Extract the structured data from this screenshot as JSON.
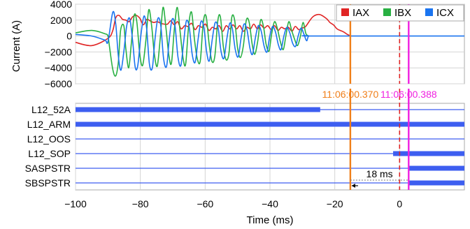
{
  "chart_data": [
    {
      "type": "line",
      "ylabel": "Current (A)",
      "xlabel": "",
      "xlim": [
        -100,
        20
      ],
      "ylim": [
        -6000,
        4000
      ],
      "yticks": [
        4000,
        2000,
        0,
        -2000,
        -4000,
        -6000
      ],
      "yticks_labels": [
        "4000",
        "2000",
        "0",
        "−2000",
        "−4000",
        "−6000"
      ],
      "grid": true,
      "legend_position": "top-right",
      "series": [
        {
          "name": "IAX",
          "color": "#e02424",
          "x": [
            -100,
            -95,
            -90,
            -88.5,
            -87.6,
            -86.6,
            -85.5,
            -84.5,
            -83.5,
            -82.4,
            -81.3,
            -80.1,
            -79.1,
            -78,
            -77,
            -75.9,
            -74.8,
            -73.7,
            -72.7,
            -71.6,
            -70.6,
            -69.5,
            -68.5,
            -67.4,
            -66.3,
            -65.3,
            -64.2,
            -63.1,
            -62.1,
            -61,
            -59.9,
            -58.8,
            -57.8,
            -56.7,
            -55.7,
            -54.6,
            -53.5,
            -52.4,
            -51.4,
            -50.3,
            -49.3,
            -48.2,
            -47.1,
            -46,
            -45,
            -43.9,
            -42.9,
            -41.8,
            -40.7,
            -39.6,
            -38.6,
            -37.5,
            -36.5,
            -35.4,
            -34.3,
            -33.2,
            -32.2,
            -31.1,
            -30.1,
            -29,
            -26.8,
            -24.7,
            -22.6,
            -21.5,
            -20.4,
            -19.3,
            -18.3,
            -17.2,
            -16.1,
            -15
          ],
          "values": [
            -800,
            -1200,
            -300,
            700,
            2300,
            2600,
            2100,
            2000,
            1800,
            2400,
            2600,
            2200,
            1400,
            2100,
            1900,
            1700,
            1800,
            1600,
            1500,
            1500,
            1900,
            1400,
            1800,
            900,
            1300,
            1200,
            1600,
            800,
            1300,
            1100,
            1500,
            700,
            1100,
            900,
            1300,
            600,
            1300,
            900,
            1400,
            900,
            1300,
            600,
            1100,
            900,
            1500,
            900,
            1400,
            1000,
            1300,
            800,
            1300,
            700,
            1100,
            900,
            1100,
            600,
            1200,
            800,
            1000,
            1200,
            2400,
            2700,
            2200,
            1700,
            1400,
            900,
            700,
            500,
            200,
            0
          ]
        },
        {
          "name": "IBX",
          "color": "#28b042",
          "x": [
            -100,
            -95,
            -91,
            -90,
            -89.6,
            -88.5,
            -87.6,
            -86.8,
            -86.1,
            -85.1,
            -84.5,
            -83.6,
            -82.8,
            -81.9,
            -81.1,
            -80.2,
            -79.3,
            -78.3,
            -77.4,
            -76.5,
            -75.7,
            -74.8,
            -73.9,
            -73,
            -72.1,
            -71.2,
            -70.4,
            -69.5,
            -68.6,
            -67.7,
            -66.8,
            -66,
            -65.1,
            -64.2,
            -63.3,
            -62.4,
            -61.5,
            -60.6,
            -59.7,
            -58.8,
            -57.9,
            -57,
            -56.1,
            -55.3,
            -54.4,
            -53.5,
            -52.6,
            -51.8,
            -50.9,
            -50,
            -49.1,
            -48.2,
            -47.3,
            -46.4,
            -45.5,
            -44.7,
            -43.8,
            -42.9,
            -42,
            -41.2,
            -40.3,
            -39.5,
            -38.6,
            -37.7,
            -36.8,
            -35.9,
            -35.1,
            -34.2,
            -33.3,
            -32.4,
            -31.5,
            -30.6,
            -29.8,
            -28.9,
            -28
          ],
          "values": [
            400,
            700,
            300,
            0,
            -1100,
            -4200,
            -5000,
            -3300,
            700,
            1300,
            -1500,
            -4000,
            -1000,
            2600,
            1800,
            -2200,
            -3700,
            -600,
            3300,
            1200,
            -2200,
            -3800,
            -500,
            3600,
            1000,
            -2400,
            -3400,
            900,
            3600,
            400,
            -2800,
            -3500,
            1300,
            3000,
            -400,
            -2900,
            -3100,
            1700,
            2500,
            -900,
            -3200,
            -2500,
            1900,
            2400,
            -1300,
            -3000,
            -2000,
            2300,
            2000,
            -1500,
            -2700,
            -1200,
            2000,
            1700,
            -1000,
            -2300,
            -700,
            2000,
            1200,
            -1000,
            -1900,
            200,
            1800,
            900,
            -700,
            -1700,
            0,
            1800,
            700,
            -400,
            -1200,
            0,
            1700,
            300,
            0
          ]
        },
        {
          "name": "ICX",
          "color": "#1a74f0",
          "x": [
            -100,
            -95,
            -91,
            -90,
            -88.5,
            -87.6,
            -86.8,
            -86,
            -85.1,
            -84.2,
            -83.3,
            -82.4,
            -81.6,
            -80.8,
            -79.8,
            -78.9,
            -78.1,
            -77.2,
            -76.3,
            -75.5,
            -74.6,
            -73.7,
            -72.8,
            -71.9,
            -71.1,
            -70.2,
            -69.3,
            -68.4,
            -67.5,
            -66.6,
            -65.8,
            -64.9,
            -64,
            -63.1,
            -62.2,
            -61.3,
            -60.4,
            -59.5,
            -58.7,
            -57.8,
            -56.9,
            -56,
            -55.1,
            -54.2,
            -53.3,
            -52.4,
            -51.6,
            -50.7,
            -49.8,
            -48.9,
            -48,
            -47.1,
            -46.2,
            -45.4,
            -44.5,
            -43.6,
            -42.7,
            -41.8,
            -40.9,
            -40.1,
            -39.2,
            -38.3,
            -37.4,
            -36.6,
            -35.7,
            -34.8,
            -33.9,
            -33,
            -32.1,
            -31.3,
            -30.4,
            -29.5,
            -28.7,
            -28,
            -26,
            20
          ],
          "values": [
            200,
            0,
            -500,
            -700,
            3000,
            1500,
            -2500,
            -4300,
            -2000,
            1300,
            2200,
            -500,
            -3900,
            -3700,
            200,
            2500,
            1100,
            -3500,
            -4000,
            -500,
            2200,
            1300,
            -2900,
            -3800,
            -500,
            2100,
            1300,
            -2600,
            -3700,
            -600,
            1900,
            1100,
            -2300,
            -3300,
            -500,
            1800,
            1100,
            -2100,
            -3100,
            -400,
            1700,
            1000,
            -1900,
            -2800,
            -300,
            1600,
            900,
            -1700,
            -2600,
            -200,
            1500,
            800,
            -1500,
            -2300,
            -200,
            1300,
            600,
            -1300,
            -2000,
            -100,
            1200,
            500,
            -1100,
            -1700,
            0,
            1100,
            400,
            -900,
            -1300,
            0,
            1000,
            200,
            -600,
            0,
            0,
            0
          ]
        }
      ]
    },
    {
      "type": "digital-timing",
      "xlabel": "Time (ms)",
      "xlim": [
        -100,
        20
      ],
      "xticks": [
        -100,
        -80,
        -60,
        -40,
        -20,
        0
      ],
      "xticks_labels": [
        "−100",
        "−80",
        "−60",
        "−40",
        "−20",
        "0"
      ],
      "grid": true,
      "signals": [
        {
          "name": "L12_52A",
          "on_intervals": [
            [
              -100,
              -24.5
            ]
          ]
        },
        {
          "name": "L12_ARM",
          "on_intervals": [
            [
              -100,
              20
            ]
          ]
        },
        {
          "name": "L12_OOS",
          "on_intervals": []
        },
        {
          "name": "L12_SOP",
          "on_intervals": [
            [
              -2,
              20
            ]
          ]
        },
        {
          "name": "SASPSTR",
          "on_intervals": [
            [
              2.8,
              20
            ]
          ]
        },
        {
          "name": "SBSPSTR",
          "on_intervals": [
            [
              2.8,
              20
            ]
          ]
        }
      ],
      "signal_color": "#3d5ef0",
      "markers": [
        {
          "time": -15.2,
          "label": "11:06:00.370",
          "color": "#f07f1a",
          "style": "solid"
        },
        {
          "time": 2.8,
          "label": "11:06:00.388",
          "color": "#f020e0",
          "style": "solid"
        },
        {
          "time": 0,
          "label": "",
          "color": "#e02424",
          "style": "dashed"
        }
      ],
      "interval": {
        "from": -15.2,
        "to": 2.8,
        "label": "18 ms"
      }
    }
  ]
}
